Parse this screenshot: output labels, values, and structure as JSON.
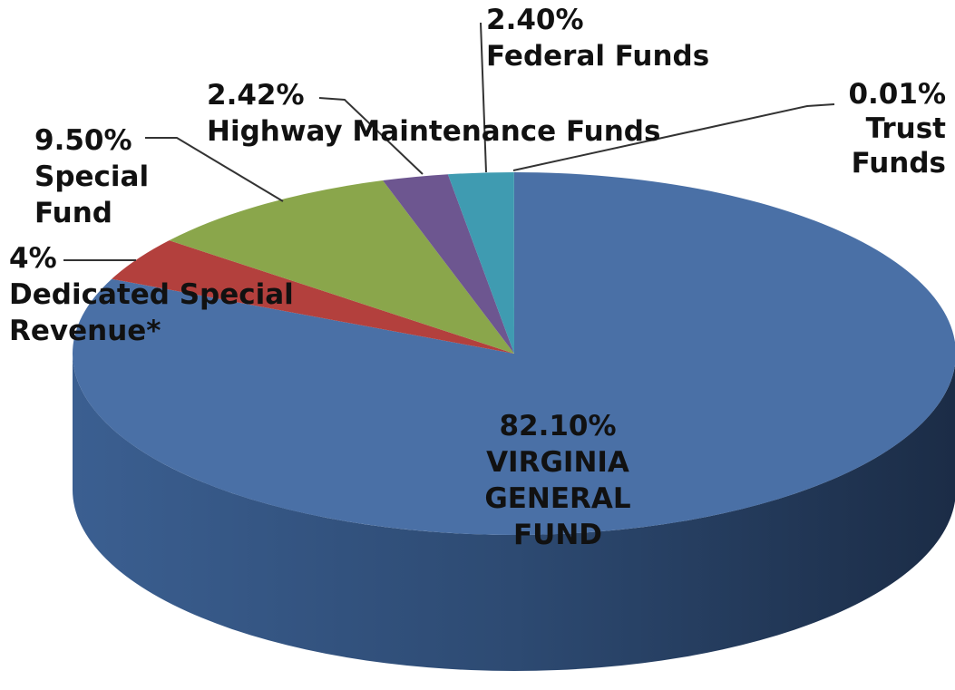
{
  "chart_data": {
    "type": "pie",
    "categories": [
      "VIRGINIA\nGENERAL\nFUND",
      "Dedicated Special\nRevenue*",
      "Special\nFund",
      "Highway Maintenance Funds",
      "Federal Funds",
      "Trust\nFunds"
    ],
    "values": [
      82.1,
      4,
      9.5,
      2.42,
      2.4,
      0.01
    ],
    "value_labels": [
      "82.10%",
      "4%",
      "9.50%",
      "2.42%",
      "2.40%",
      "0.01%"
    ],
    "colors": [
      "#4a70a6",
      "#b3403d",
      "#8aa64b",
      "#6d5690",
      "#3f9bb1",
      "#3a8ea4"
    ]
  }
}
